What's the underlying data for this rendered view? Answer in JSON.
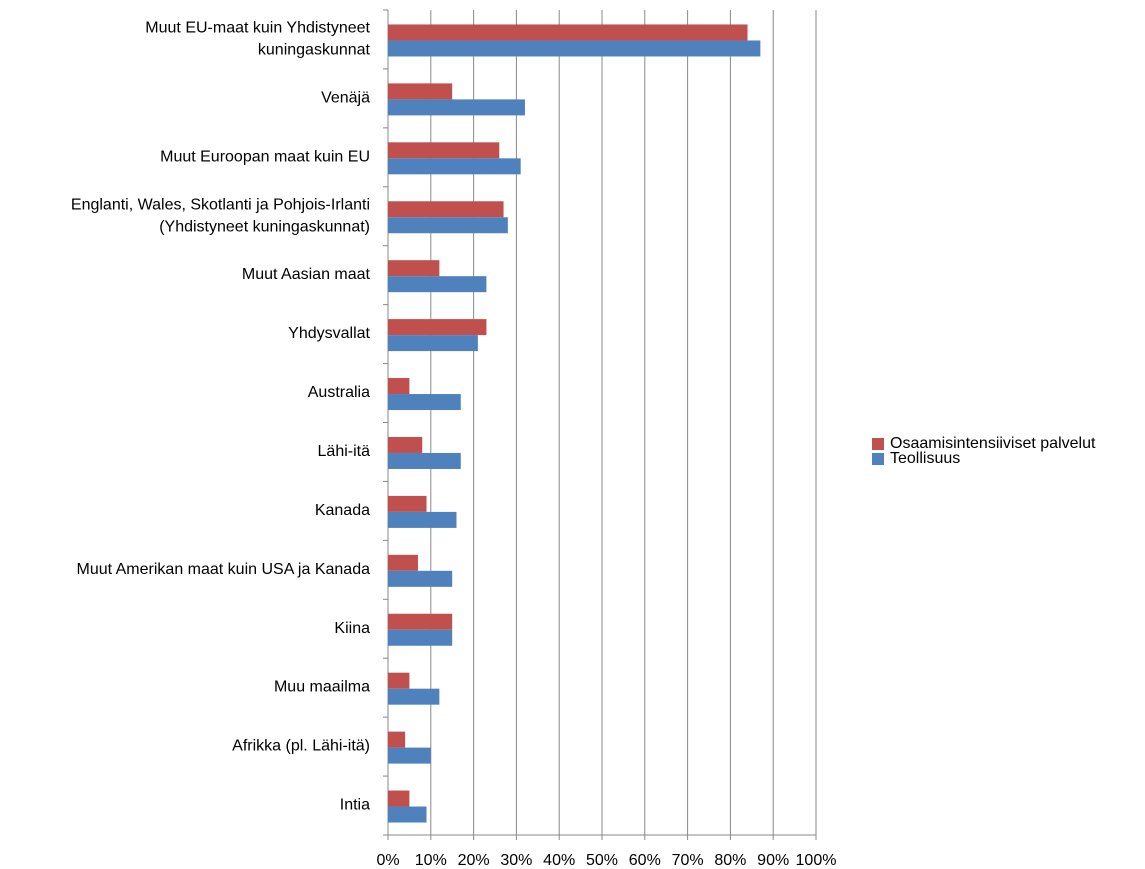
{
  "chart_data": {
    "type": "hbar",
    "categories": [
      "Muut EU-maat  kuin Yhdistyneet\nkuningaskunnat",
      "Venäjä",
      "Muut Euroopan maat kuin EU",
      "Englanti, Wales, Skotlanti ja Pohjois-Irlanti\n(Yhdistyneet kuningaskunnat)",
      "Muut Aasian maat",
      "Yhdysvallat",
      "Australia",
      "Lähi-itä",
      "Kanada",
      "Muut Amerikan maat kuin USA ja Kanada",
      "Kiina",
      "Muu maailma",
      "Afrikka (pl. Lähi-itä)",
      "Intia"
    ],
    "series": [
      {
        "name": "Osaamisintensiiviset palvelut",
        "color": "#c0504d",
        "values": [
          84,
          15,
          26,
          27,
          12,
          23,
          5,
          8,
          9,
          7,
          15,
          5,
          4,
          5
        ]
      },
      {
        "name": "Teollisuus",
        "color": "#4f81bd",
        "values": [
          87,
          32,
          31,
          28,
          23,
          21,
          17,
          17,
          16,
          15,
          15,
          12,
          10,
          9
        ]
      }
    ],
    "xlim": [
      0,
      100
    ],
    "xticks": [
      {
        "value": 0,
        "label": "0%"
      },
      {
        "value": 10,
        "label": "10%"
      },
      {
        "value": 20,
        "label": "20%"
      },
      {
        "value": 30,
        "label": "30%"
      },
      {
        "value": 40,
        "label": "40%"
      },
      {
        "value": 50,
        "label": "50%"
      },
      {
        "value": 60,
        "label": "60%"
      },
      {
        "value": 70,
        "label": "70%"
      },
      {
        "value": 80,
        "label": "80%"
      },
      {
        "value": 90,
        "label": "90%"
      },
      {
        "value": 100,
        "label": "100%"
      }
    ],
    "grid": true,
    "legend": "right"
  }
}
